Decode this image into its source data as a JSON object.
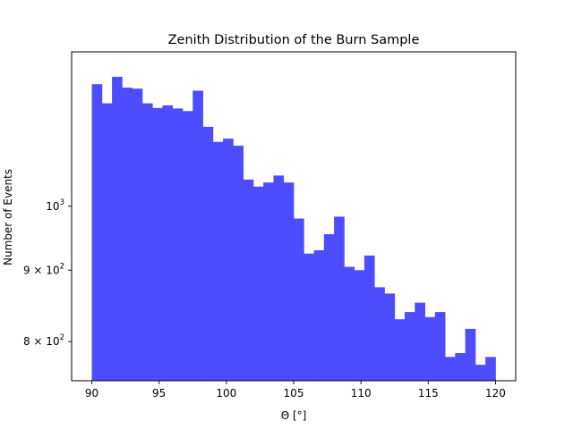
{
  "chart_data": {
    "type": "bar",
    "subtype": "histogram",
    "title": "Zenith Distribution of the Burn Sample",
    "xlabel": "Θ [°]",
    "ylabel": "Number of Events",
    "x_scale": "linear",
    "y_scale": "log",
    "xlim": [
      88.5,
      121.5
    ],
    "ylim": [
      750,
      1290
    ],
    "bar_color": "#4d4dff",
    "grid": false,
    "legend": "none",
    "bin_width": 0.75,
    "bin_edges_start": 90,
    "x_ticks": [
      {
        "value": 90,
        "label": "90"
      },
      {
        "value": 95,
        "label": "95"
      },
      {
        "value": 100,
        "label": "100"
      },
      {
        "value": 105,
        "label": "105"
      },
      {
        "value": 110,
        "label": "110"
      },
      {
        "value": 115,
        "label": "115"
      },
      {
        "value": 120,
        "label": "120"
      }
    ],
    "y_ticks": [
      {
        "value": 800,
        "label": "8 × 10",
        "exp": "2"
      },
      {
        "value": 900,
        "label": "9 × 10",
        "exp": "2"
      },
      {
        "value": 1000,
        "label": "10",
        "exp": "3"
      }
    ],
    "values": [
      1223,
      1185,
      1238,
      1216,
      1214,
      1185,
      1176,
      1181,
      1175,
      1170,
      1210,
      1140,
      1112,
      1118,
      1105,
      1045,
      1033,
      1040,
      1052,
      1040,
      980,
      925,
      930,
      955,
      983,
      905,
      900,
      922,
      875,
      866,
      830,
      840,
      853,
      833,
      840,
      780,
      785,
      817,
      770,
      780
    ]
  }
}
